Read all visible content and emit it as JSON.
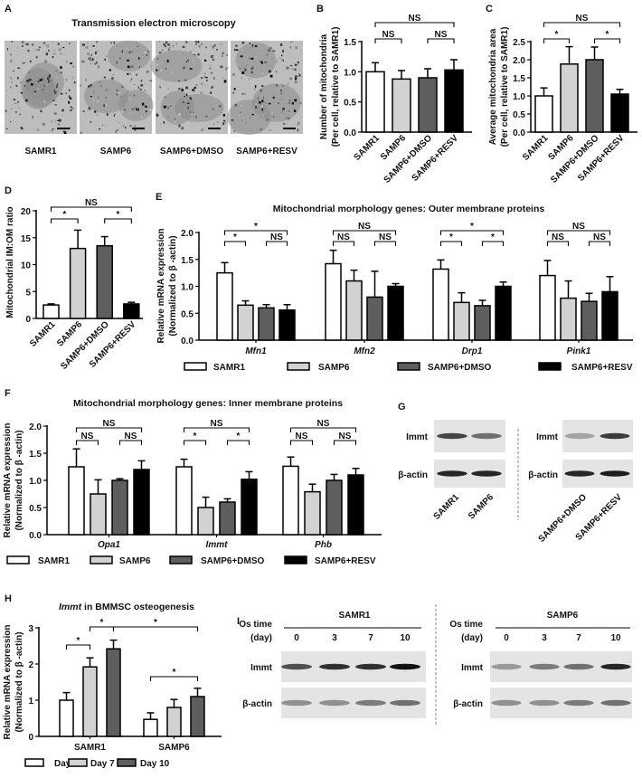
{
  "panel_labels": {
    "A": "A",
    "B": "B",
    "C": "C",
    "D": "D",
    "E": "E",
    "F": "F",
    "G": "G",
    "H": "H",
    "I": "I"
  },
  "panel_a": {
    "title": "Transmission electron microscopy",
    "images": [
      "SAMR1",
      "SAMP6",
      "SAMP6+DMSO",
      "SAMP6+RESV"
    ]
  },
  "legend_groups": [
    "SAMR1",
    "SAMP6",
    "SAMP6+DMSO",
    "SAMP6+RESV"
  ],
  "legend_days": [
    "Day 0",
    "Day 7",
    "Day 10"
  ],
  "colors": {
    "SAMR1": "#ffffff",
    "SAMP6": "#d2d2d2",
    "SAMP6+DMSO": "#5e5e5e",
    "SAMP6+RESV": "#000000"
  },
  "chart_data": [
    {
      "id": "B",
      "type": "bar",
      "title": "",
      "ylabel": [
        "Number of mitochondria",
        "(Per cell, relative to SAMR1)"
      ],
      "ylim": [
        0,
        1.5
      ],
      "yticks": [
        "0.0",
        "0.5",
        "1.0",
        "1.5"
      ],
      "categories": [
        "SAMR1",
        "SAMP6",
        "SAMP6+DMSO",
        "SAMP6+RESV"
      ],
      "groups": [
        {
          "name": "",
          "values": [
            1.0,
            0.88,
            0.9,
            1.03
          ],
          "errors": [
            0.15,
            0.14,
            0.15,
            0.17
          ]
        }
      ],
      "significance": [
        {
          "from": [
            0,
            0
          ],
          "to": [
            0,
            3
          ],
          "label": "NS"
        },
        {
          "from": [
            0,
            0
          ],
          "to": [
            0,
            1
          ],
          "label": "NS"
        },
        {
          "from": [
            0,
            2
          ],
          "to": [
            0,
            3
          ],
          "label": "NS"
        }
      ]
    },
    {
      "id": "C",
      "type": "bar",
      "title": "",
      "ylabel": [
        "Average mitochondria area",
        "(Per cell, relative to SAMR1)"
      ],
      "ylim": [
        0,
        2.5
      ],
      "yticks": [
        "0.0",
        "0.5",
        "1.0",
        "1.5",
        "2.0",
        "2.5"
      ],
      "categories": [
        "SAMR1",
        "SAMP6",
        "SAMP6+DMSO",
        "SAMP6+RESV"
      ],
      "groups": [
        {
          "name": "",
          "values": [
            1.0,
            1.88,
            2.0,
            1.05
          ],
          "errors": [
            0.22,
            0.48,
            0.35,
            0.13
          ]
        }
      ],
      "significance": [
        {
          "from": [
            0,
            0
          ],
          "to": [
            0,
            3
          ],
          "label": "NS"
        },
        {
          "from": [
            0,
            0
          ],
          "to": [
            0,
            1
          ],
          "label": "*"
        },
        {
          "from": [
            0,
            2
          ],
          "to": [
            0,
            3
          ],
          "label": "*"
        }
      ]
    },
    {
      "id": "D",
      "type": "bar",
      "title": "",
      "ylabel": [
        "Mitochondrial IM:OM ratio"
      ],
      "ylim": [
        0,
        20
      ],
      "yticks": [
        "0",
        "5",
        "10",
        "15",
        "20"
      ],
      "categories": [
        "SAMR1",
        "SAMP6",
        "SAMP6+DMSO",
        "SAMP6+RESV"
      ],
      "groups": [
        {
          "name": "",
          "values": [
            2.5,
            13.0,
            13.5,
            2.7
          ],
          "errors": [
            0.2,
            3.4,
            1.7,
            0.3
          ]
        }
      ],
      "significance": [
        {
          "from": [
            0,
            0
          ],
          "to": [
            0,
            3
          ],
          "label": "NS"
        },
        {
          "from": [
            0,
            0
          ],
          "to": [
            0,
            1
          ],
          "label": "*"
        },
        {
          "from": [
            0,
            2
          ],
          "to": [
            0,
            3
          ],
          "label": "*"
        }
      ]
    },
    {
      "id": "E",
      "type": "bar",
      "title": "Mitochondrial morphology genes: Outer membrane proteins",
      "ylabel": [
        "Relative mRNA expression",
        "(Normalized to β -actin)"
      ],
      "ylim": [
        0,
        2.0
      ],
      "yticks": [
        "0.0",
        "0.5",
        "1.0",
        "1.5",
        "2.0"
      ],
      "series": [
        "SAMR1",
        "SAMP6",
        "SAMP6+DMSO",
        "SAMP6+RESV"
      ],
      "groups": [
        {
          "name": "Mfn1",
          "values": [
            1.25,
            0.65,
            0.6,
            0.56
          ],
          "errors": [
            0.19,
            0.08,
            0.06,
            0.1
          ]
        },
        {
          "name": "Mfn2",
          "values": [
            1.42,
            1.1,
            0.8,
            1.0
          ],
          "errors": [
            0.25,
            0.2,
            0.48,
            0.05
          ]
        },
        {
          "name": "Drp1",
          "values": [
            1.32,
            0.7,
            0.64,
            1.0
          ],
          "errors": [
            0.17,
            0.18,
            0.1,
            0.08
          ]
        },
        {
          "name": "Pink1",
          "values": [
            1.2,
            0.78,
            0.72,
            0.9
          ],
          "errors": [
            0.28,
            0.32,
            0.15,
            0.28
          ]
        }
      ],
      "significance": [
        {
          "from": [
            0,
            0
          ],
          "to": [
            0,
            3
          ],
          "label": "*"
        },
        {
          "from": [
            0,
            0
          ],
          "to": [
            0,
            1
          ],
          "label": "*"
        },
        {
          "from": [
            0,
            2
          ],
          "to": [
            0,
            3
          ],
          "label": "NS"
        },
        {
          "from": [
            1,
            0
          ],
          "to": [
            1,
            3
          ],
          "label": "NS"
        },
        {
          "from": [
            1,
            0
          ],
          "to": [
            1,
            1
          ],
          "label": "NS"
        },
        {
          "from": [
            1,
            2
          ],
          "to": [
            1,
            3
          ],
          "label": "NS"
        },
        {
          "from": [
            2,
            0
          ],
          "to": [
            2,
            3
          ],
          "label": "*"
        },
        {
          "from": [
            2,
            0
          ],
          "to": [
            2,
            1
          ],
          "label": "*"
        },
        {
          "from": [
            2,
            2
          ],
          "to": [
            2,
            3
          ],
          "label": "*"
        },
        {
          "from": [
            3,
            0
          ],
          "to": [
            3,
            3
          ],
          "label": "NS"
        },
        {
          "from": [
            3,
            0
          ],
          "to": [
            3,
            1
          ],
          "label": "NS"
        },
        {
          "from": [
            3,
            2
          ],
          "to": [
            3,
            3
          ],
          "label": "NS"
        }
      ]
    },
    {
      "id": "F",
      "type": "bar",
      "title": "Mitochondrial morphology genes: Inner membrane proteins",
      "ylabel": [
        "Relative mRNA expression",
        "(Normalized to β -actin)"
      ],
      "ylim": [
        0,
        2.0
      ],
      "yticks": [
        "0.0",
        "0.5",
        "1.0",
        "1.5",
        "2.0"
      ],
      "series": [
        "SAMR1",
        "SAMP6",
        "SAMP6+DMSO",
        "SAMP6+RESV"
      ],
      "groups": [
        {
          "name": "Opa1",
          "values": [
            1.25,
            0.75,
            1.0,
            1.2
          ],
          "errors": [
            0.33,
            0.26,
            0.03,
            0.16
          ]
        },
        {
          "name": "Immt",
          "values": [
            1.25,
            0.5,
            0.6,
            1.02
          ],
          "errors": [
            0.14,
            0.19,
            0.06,
            0.14
          ]
        },
        {
          "name": "Phb",
          "values": [
            1.26,
            0.79,
            1.0,
            1.1
          ],
          "errors": [
            0.17,
            0.14,
            0.11,
            0.12
          ]
        }
      ],
      "significance": [
        {
          "from": [
            0,
            0
          ],
          "to": [
            0,
            3
          ],
          "label": "NS"
        },
        {
          "from": [
            0,
            0
          ],
          "to": [
            0,
            1
          ],
          "label": "NS"
        },
        {
          "from": [
            0,
            2
          ],
          "to": [
            0,
            3
          ],
          "label": "NS"
        },
        {
          "from": [
            1,
            0
          ],
          "to": [
            1,
            3
          ],
          "label": "NS"
        },
        {
          "from": [
            1,
            0
          ],
          "to": [
            1,
            1
          ],
          "label": "*"
        },
        {
          "from": [
            1,
            2
          ],
          "to": [
            1,
            3
          ],
          "label": "*"
        },
        {
          "from": [
            2,
            0
          ],
          "to": [
            2,
            3
          ],
          "label": "NS"
        },
        {
          "from": [
            2,
            0
          ],
          "to": [
            2,
            1
          ],
          "label": "NS"
        },
        {
          "from": [
            2,
            2
          ],
          "to": [
            2,
            3
          ],
          "label": "NS"
        }
      ]
    },
    {
      "id": "H",
      "type": "bar",
      "title_italic": "Immt",
      "title": " in BMMSC osteogenesis",
      "ylabel": [
        "Relative mRNA expression",
        "(Normalized to β -actin)"
      ],
      "ylim": [
        0,
        3
      ],
      "yticks": [
        "0",
        "1",
        "2",
        "3"
      ],
      "series": [
        "Day 0",
        "Day 7",
        "Day 10"
      ],
      "groups": [
        {
          "name": "SAMR1",
          "values": [
            1.0,
            1.92,
            2.42
          ],
          "errors": [
            0.21,
            0.25,
            0.24
          ]
        },
        {
          "name": "SAMP6",
          "values": [
            0.47,
            0.8,
            1.1
          ],
          "errors": [
            0.18,
            0.22,
            0.23
          ]
        }
      ],
      "significance": [
        {
          "from": [
            0,
            0
          ],
          "to": [
            0,
            1
          ],
          "label": "*"
        },
        {
          "from": [
            0,
            1
          ],
          "to": [
            0,
            2
          ],
          "label": "*"
        },
        {
          "from": [
            0,
            2
          ],
          "to": [
            1,
            2
          ],
          "label": "*"
        },
        {
          "from": [
            1,
            0
          ],
          "to": [
            1,
            2
          ],
          "label": "*"
        }
      ]
    }
  ],
  "panel_g": {
    "rows": [
      "Immt",
      "β-actin"
    ],
    "lanes_left": [
      "SAMR1",
      "SAMP6"
    ],
    "lanes_right": [
      "SAMP6+DMSO",
      "SAMP6+RESV"
    ]
  },
  "panel_i": {
    "os_time": "Os time",
    "day_unit": "(day)",
    "days": [
      "0",
      "3",
      "7",
      "10"
    ],
    "rows": [
      "Immt",
      "β-actin"
    ],
    "blocks": [
      "SAMR1",
      "SAMP6"
    ]
  }
}
